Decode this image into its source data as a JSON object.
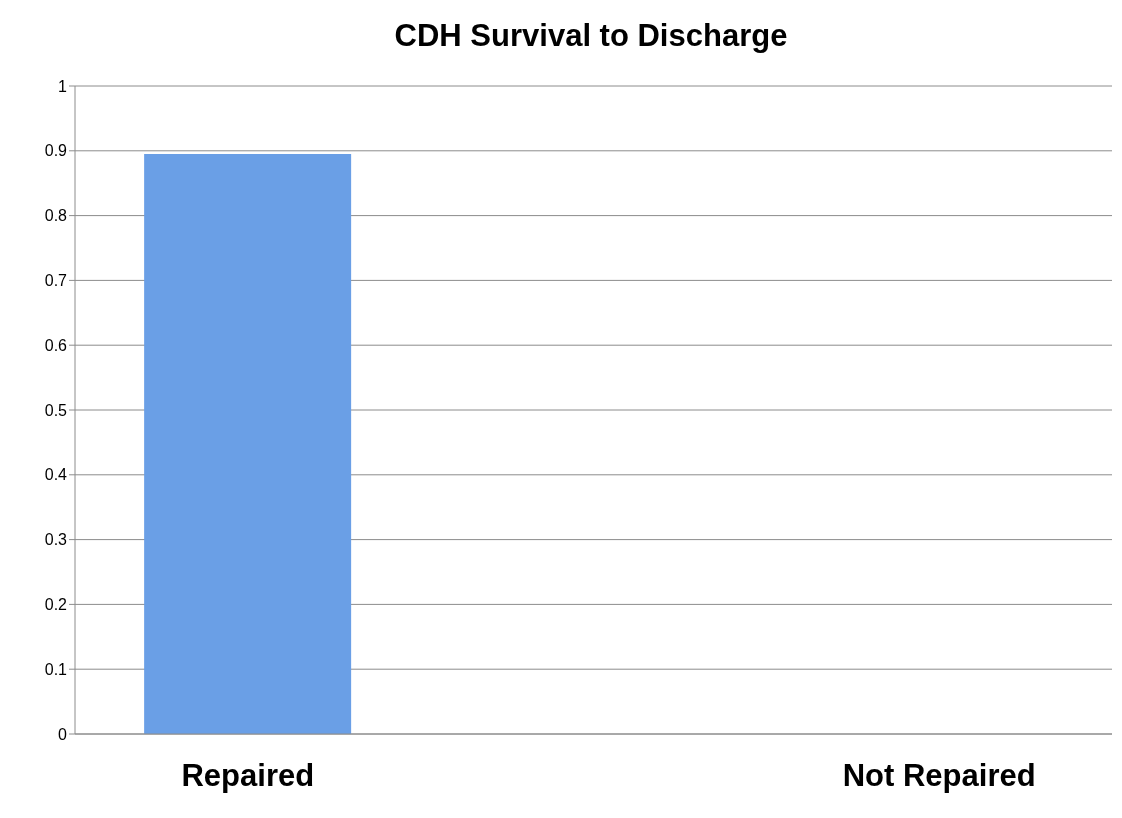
{
  "chart_data": {
    "type": "bar",
    "title": "CDH Survival to Discharge",
    "categories": [
      "Repaired",
      null,
      "Not Repaired"
    ],
    "values": [
      0.895,
      null,
      0
    ],
    "color": "#6a9fe6",
    "ylim": [
      0,
      1
    ],
    "yticks": [
      0,
      0.1,
      0.2,
      0.3,
      0.4,
      0.5,
      0.6,
      0.7,
      0.8,
      0.9,
      1
    ],
    "grid": "y"
  }
}
